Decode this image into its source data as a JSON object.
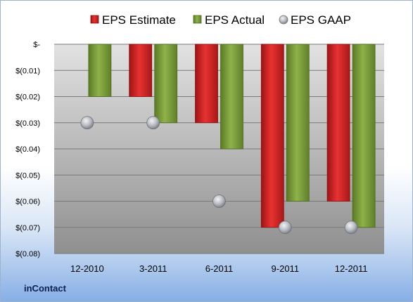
{
  "chart_data": {
    "type": "bar",
    "categories": [
      "12-2010",
      "3-2011",
      "6-2011",
      "9-2011",
      "12-2011"
    ],
    "series": [
      {
        "name": "EPS Estimate",
        "values": [
          null,
          -0.02,
          -0.03,
          -0.07,
          -0.06
        ],
        "color": "#d42020",
        "kind": "bar"
      },
      {
        "name": "EPS Actual",
        "values": [
          -0.02,
          -0.03,
          -0.04,
          -0.06,
          -0.07
        ],
        "color": "#7ea03c",
        "kind": "bar"
      },
      {
        "name": "EPS GAAP",
        "values": [
          -0.03,
          -0.03,
          -0.06,
          -0.07,
          -0.07
        ],
        "color": "#b8bcc2",
        "kind": "marker"
      }
    ],
    "yticks": [
      "$-",
      "$(0.01)",
      "$(0.02)",
      "$(0.03)",
      "$(0.04)",
      "$(0.05)",
      "$(0.06)",
      "$(0.07)",
      "$(0.08)"
    ],
    "ylim": [
      -0.08,
      0
    ],
    "grid": true,
    "legend_position": "top"
  },
  "footer": {
    "company": "inContact"
  }
}
